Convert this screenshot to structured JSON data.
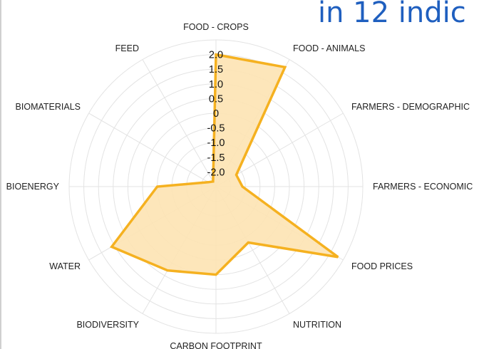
{
  "header": {
    "title_fragment": "in 12 indic"
  },
  "chart_data": {
    "type": "radar",
    "categories": [
      "FOOD - CROPS",
      "FOOD - ANIMALS",
      "FARMERS - DEMOGRAPHIC",
      "FARMERS - ECONOMIC",
      "FOOD PRICES",
      "NUTRITION",
      "CARBON FOOTPRINT",
      "BIODIVERSITY",
      "WATER",
      "BIOENERGY",
      "BIOMATERIALS",
      "FEED"
    ],
    "series": [
      {
        "values": [
          2.0,
          2.2,
          -1.7,
          -1.6,
          2.3,
          -0.3,
          0.5,
          0.8,
          1.6,
          -0.5,
          -2.2,
          -2.3
        ]
      }
    ],
    "ticks": [
      "2.0",
      "1.5",
      "1.0",
      "0.5",
      "0",
      "-0.5",
      "-1.0",
      "-1.5",
      "-2.0"
    ],
    "rlim": [
      -2.5,
      2.5
    ],
    "grid": true,
    "colors": {
      "line": "#f5b120",
      "fill": "#fde3b3",
      "grid": "#e3e3e3"
    }
  }
}
